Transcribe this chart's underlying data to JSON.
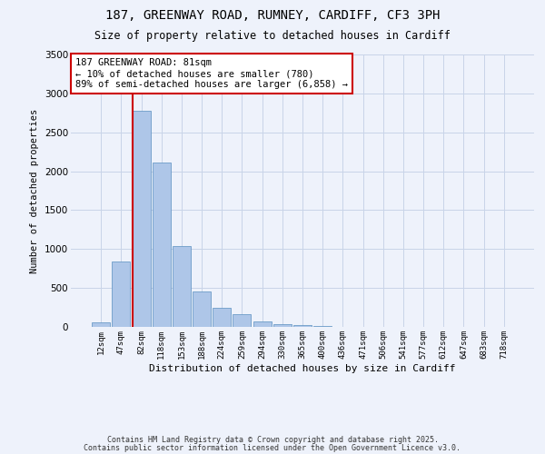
{
  "title_line1": "187, GREENWAY ROAD, RUMNEY, CARDIFF, CF3 3PH",
  "title_line2": "Size of property relative to detached houses in Cardiff",
  "xlabel": "Distribution of detached houses by size in Cardiff",
  "ylabel": "Number of detached properties",
  "annotation_title": "187 GREENWAY ROAD: 81sqm",
  "annotation_line2": "← 10% of detached houses are smaller (780)",
  "annotation_line3": "89% of semi-detached houses are larger (6,858) →",
  "footer_line1": "Contains HM Land Registry data © Crown copyright and database right 2025.",
  "footer_line2": "Contains public sector information licensed under the Open Government Licence v3.0.",
  "categories": [
    "12sqm",
    "47sqm",
    "82sqm",
    "118sqm",
    "153sqm",
    "188sqm",
    "224sqm",
    "259sqm",
    "294sqm",
    "330sqm",
    "365sqm",
    "400sqm",
    "436sqm",
    "471sqm",
    "506sqm",
    "541sqm",
    "577sqm",
    "612sqm",
    "647sqm",
    "683sqm",
    "718sqm"
  ],
  "values": [
    55,
    840,
    2780,
    2110,
    1040,
    455,
    250,
    160,
    65,
    40,
    25,
    10,
    5,
    2,
    1,
    1,
    0,
    0,
    0,
    0,
    0
  ],
  "bar_color": "#aec6e8",
  "bar_edge_color": "#5a8fc0",
  "vline_x_index": 2,
  "vline_color": "#cc0000",
  "ylim": [
    0,
    3500
  ],
  "background_color": "#eef2fb",
  "grid_color": "#c8d4e8",
  "annotation_box_color": "#ffffff",
  "annotation_box_edge": "#cc0000"
}
